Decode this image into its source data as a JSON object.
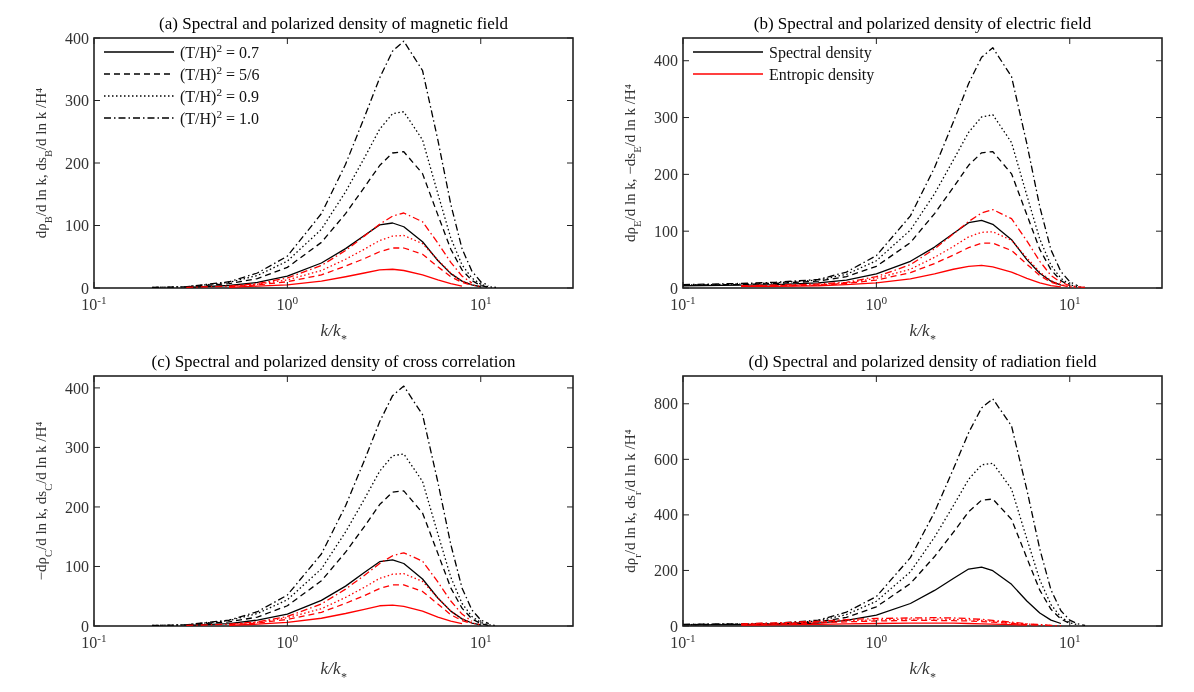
{
  "chart_data": [
    {
      "type": "line",
      "title": "(a) Spectral and polarized density of magnetic field",
      "xlabel": "k/k$_{*}$",
      "ylabel": "dρ$_{B}$/d ln k,  ds$_{B}$/d ln k /H⁴",
      "log": "x",
      "legend": "top left",
      "xlim": [
        0.1,
        30
      ],
      "xticks": [
        {
          "value": 0.1,
          "label": "10$^{-1}$"
        },
        {
          "value": 1,
          "label": "10$^{0}$"
        },
        {
          "value": 10,
          "label": "10$^{1}$"
        }
      ],
      "ylim": [
        0,
        400
      ],
      "yticks": [
        0,
        100,
        200,
        300,
        400
      ],
      "x": [
        0.2,
        0.3,
        0.5,
        0.7,
        1,
        1.5,
        2,
        2.5,
        3,
        3.5,
        4,
        5,
        6,
        7,
        8,
        9,
        10,
        11,
        12
      ],
      "series": [
        {
          "name": "(T/H)$^{2}$ = 0.7",
          "color": "#000000",
          "line_style": "solid",
          "values": [
            null,
            1,
            4,
            9,
            19,
            40,
            63,
            84,
            101,
            104,
            98,
            74,
            44,
            23,
            11,
            5,
            2,
            null,
            null
          ]
        },
        {
          "name": "(T/H)$^{2}$ = 5/6",
          "color": "#000000",
          "line_style": "dashed",
          "values": [
            null,
            2,
            7,
            15,
            33,
            73,
            119,
            161,
            196,
            216,
            218,
            183,
            117,
            62,
            29,
            12,
            4,
            1,
            null
          ]
        },
        {
          "name": "(T/H)$^{2}$ = 0.9",
          "color": "#000000",
          "line_style": "dotted",
          "values": [
            1,
            2,
            9,
            20,
            43,
            94,
            154,
            208,
            254,
            279,
            282,
            237,
            151,
            80,
            37,
            16,
            6,
            2,
            1
          ]
        },
        {
          "name": "(T/H)$^{2}$ = 1.0",
          "color": "#000000",
          "line_style": "dashdot",
          "values": [
            1,
            2,
            10,
            24,
            51,
            119,
            198,
            273,
            336,
            379,
            395,
            348,
            237,
            134,
            63,
            27,
            10,
            4,
            null
          ]
        },
        {
          "color": "#ff0000",
          "line_style": "solid",
          "values": [
            null,
            null,
            1,
            3,
            5,
            11,
            18,
            24,
            29,
            30,
            28,
            21,
            13,
            7,
            3,
            null,
            null,
            null,
            null
          ]
        },
        {
          "color": "#ff0000",
          "line_style": "dashed",
          "values": [
            null,
            null,
            2,
            5,
            10,
            21,
            35,
            47,
            58,
            64,
            64,
            54,
            34,
            18,
            9,
            4,
            null,
            null,
            null
          ]
        },
        {
          "color": "#ff0000",
          "line_style": "dotted",
          "values": [
            null,
            null,
            3,
            6,
            13,
            28,
            46,
            62,
            76,
            83,
            84,
            71,
            45,
            24,
            11,
            5,
            2,
            null,
            null
          ]
        },
        {
          "color": "#ff0000",
          "line_style": "dashdot",
          "values": [
            null,
            1,
            3,
            7,
            16,
            36,
            60,
            83,
            102,
            115,
            120,
            106,
            72,
            41,
            19,
            8,
            null,
            null,
            null
          ]
        }
      ]
    },
    {
      "type": "line",
      "title": "(b) Spectral and polarized density of electric field",
      "xlabel": "k/k$_{*}$",
      "ylabel": "dρ$_{E}$/d ln k,  −ds$_{E}$/d ln k /H⁴",
      "log": "x",
      "legend": "top left",
      "xlim": [
        0.1,
        30
      ],
      "xticks": [
        {
          "value": 0.1,
          "label": "10$^{-1}$"
        },
        {
          "value": 1,
          "label": "10$^{0}$"
        },
        {
          "value": 10,
          "label": "10$^{1}$"
        }
      ],
      "ylim": [
        0,
        440
      ],
      "yticks": [
        0,
        100,
        200,
        300,
        400
      ],
      "x": [
        0.1,
        0.2,
        0.3,
        0.5,
        0.7,
        1,
        1.5,
        2,
        2.5,
        3,
        3.5,
        4,
        5,
        6,
        7,
        8,
        9,
        10,
        11,
        12
      ],
      "series": [
        {
          "name": "Spectral density",
          "color": "#000000",
          "line_style": "solid",
          "values": [
            4,
            5,
            6,
            9,
            14,
            25,
            47,
            72,
            96,
            115,
            119,
            112,
            85,
            50,
            26,
            12,
            5,
            null,
            null,
            null
          ]
        },
        {
          "color": "#000000",
          "line_style": "dashed",
          "values": [
            5,
            6,
            8,
            12,
            20,
            38,
            80,
            131,
            177,
            216,
            238,
            240,
            201,
            129,
            68,
            32,
            13,
            4,
            null,
            null
          ]
        },
        {
          "color": "#000000",
          "line_style": "dotted",
          "values": [
            5,
            7,
            9,
            14,
            24,
            48,
            102,
            166,
            225,
            274,
            301,
            305,
            256,
            163,
            86,
            40,
            17,
            6,
            2,
            1
          ]
        },
        {
          "color": "#000000",
          "line_style": "dashdot",
          "values": [
            6,
            8,
            10,
            15,
            28,
            57,
            127,
            212,
            292,
            360,
            406,
            423,
            372,
            254,
            143,
            67,
            29,
            11,
            4,
            null
          ]
        },
        {
          "name": "Entropic density",
          "color": "#ff0000",
          "line_style": "solid",
          "values": [
            null,
            3,
            3,
            4,
            6,
            9,
            16,
            25,
            33,
            38,
            40,
            37,
            28,
            17,
            9,
            4,
            2,
            null,
            null,
            null
          ]
        },
        {
          "color": "#ff0000",
          "line_style": "dashed",
          "values": [
            null,
            3,
            4,
            5,
            8,
            14,
            27,
            43,
            58,
            71,
            79,
            79,
            66,
            42,
            22,
            10,
            5,
            2,
            null,
            null
          ]
        },
        {
          "color": "#ff0000",
          "line_style": "dotted",
          "values": [
            null,
            3,
            4,
            6,
            9,
            17,
            33,
            54,
            73,
            90,
            98,
            99,
            84,
            53,
            28,
            13,
            6,
            2,
            1,
            null
          ]
        },
        {
          "color": "#ff0000",
          "line_style": "dashdot",
          "values": [
            null,
            4,
            5,
            7,
            10,
            20,
            41,
            69,
            95,
            117,
            132,
            138,
            122,
            83,
            47,
            22,
            10,
            4,
            2,
            1
          ]
        }
      ]
    },
    {
      "type": "line",
      "title": "(c) Spectral and polarized density of cross correlation",
      "xlabel": "k/k$_{*}$",
      "ylabel": "−dρ$_{C}$/d ln k,  ds$_{C}$/d ln k /H⁴",
      "log": "x",
      "xlim": [
        0.1,
        30
      ],
      "xticks": [
        {
          "value": 0.1,
          "label": "10$^{-1}$"
        },
        {
          "value": 1,
          "label": "10$^{0}$"
        },
        {
          "value": 10,
          "label": "10$^{1}$"
        }
      ],
      "ylim": [
        0,
        420
      ],
      "yticks": [
        0,
        100,
        200,
        300,
        400
      ],
      "x": [
        0.2,
        0.3,
        0.5,
        0.7,
        1,
        1.5,
        2,
        2.5,
        3,
        3.5,
        4,
        5,
        6,
        7,
        8,
        9,
        10,
        11,
        12
      ],
      "series": [
        {
          "color": "#000000",
          "line_style": "solid",
          "values": [
            null,
            1,
            4,
            10,
            20,
            43,
            67,
            90,
            108,
            111,
            105,
            79,
            47,
            25,
            12,
            5,
            2,
            null,
            null
          ]
        },
        {
          "color": "#000000",
          "line_style": "dashed",
          "values": [
            null,
            2,
            7,
            15,
            34,
            76,
            124,
            167,
            204,
            225,
            227,
            190,
            122,
            64,
            30,
            12,
            4,
            1,
            null
          ]
        },
        {
          "color": "#000000",
          "line_style": "dotted",
          "values": [
            1,
            2,
            9,
            21,
            44,
            96,
            158,
            213,
            260,
            286,
            289,
            243,
            155,
            82,
            38,
            16,
            6,
            2,
            1
          ]
        },
        {
          "color": "#000000",
          "line_style": "dashdot",
          "values": [
            1,
            2,
            10,
            24,
            52,
            121,
            202,
            278,
            343,
            387,
            403,
            355,
            242,
            137,
            64,
            27,
            10,
            4,
            null
          ]
        },
        {
          "color": "#ff0000",
          "line_style": "solid",
          "values": [
            null,
            null,
            1,
            3,
            6,
            13,
            21,
            28,
            34,
            35,
            33,
            25,
            15,
            8,
            4,
            null,
            null,
            null,
            null
          ]
        },
        {
          "color": "#ff0000",
          "line_style": "dashed",
          "values": [
            null,
            null,
            2,
            5,
            11,
            23,
            38,
            51,
            63,
            69,
            69,
            58,
            37,
            19,
            9,
            4,
            null,
            null,
            null
          ]
        },
        {
          "color": "#ff0000",
          "line_style": "dotted",
          "values": [
            null,
            null,
            3,
            6,
            14,
            29,
            48,
            65,
            80,
            87,
            88,
            75,
            47,
            25,
            12,
            5,
            2,
            null,
            null
          ]
        },
        {
          "color": "#ff0000",
          "line_style": "dashdot",
          "values": [
            null,
            1,
            3,
            7,
            16,
            37,
            62,
            85,
            105,
            118,
            123,
            109,
            74,
            42,
            20,
            8,
            null,
            null,
            null
          ]
        }
      ]
    },
    {
      "type": "line",
      "title": "(d) Spectral and polarized density of radiation field",
      "xlabel": "k/k$_{*}$",
      "ylabel": "dρ$_{r}$/d ln k,  ds$_{r}$/d ln k /H⁴",
      "log": "x",
      "xlim": [
        0.1,
        30
      ],
      "xticks": [
        {
          "value": 0.1,
          "label": "10$^{-1}$"
        },
        {
          "value": 1,
          "label": "10$^{0}$"
        },
        {
          "value": 10,
          "label": "10$^{1}$"
        }
      ],
      "ylim": [
        0,
        900
      ],
      "yticks": [
        0,
        200,
        400,
        600,
        800
      ],
      "x": [
        0.1,
        0.2,
        0.3,
        0.5,
        0.7,
        1,
        1.5,
        2,
        2.5,
        3,
        3.5,
        4,
        5,
        6,
        7,
        8,
        9,
        10,
        11,
        12
      ],
      "series": [
        {
          "color": "#000000",
          "line_style": "solid",
          "values": [
            4,
            5,
            6,
            10,
            20,
            39,
            81,
            128,
            171,
            205,
            212,
            199,
            150,
            90,
            47,
            21,
            9,
            null,
            null,
            null
          ]
        },
        {
          "color": "#000000",
          "line_style": "dashed",
          "values": [
            5,
            6,
            7,
            15,
            31,
            69,
            153,
            250,
            337,
            411,
            453,
            457,
            384,
            245,
            129,
            60,
            25,
            9,
            null,
            null
          ]
        },
        {
          "color": "#000000",
          "line_style": "dotted",
          "values": [
            5,
            7,
            8,
            18,
            41,
            89,
            195,
            320,
            433,
            528,
            580,
            586,
            493,
            314,
            166,
            77,
            32,
            12,
            4,
            null
          ]
        },
        {
          "color": "#000000",
          "line_style": "dashdot",
          "values": [
            6,
            8,
            10,
            21,
            50,
            106,
            246,
            410,
            565,
            696,
            785,
            818,
            720,
            491,
            277,
            130,
            55,
            21,
            8,
            2
          ]
        },
        {
          "color": "#ff0000",
          "line_style": "solid",
          "values": [
            null,
            3,
            4,
            6,
            8,
            9,
            10,
            10,
            10,
            9,
            8,
            7,
            5,
            3,
            null,
            null,
            null,
            null,
            null,
            null
          ]
        },
        {
          "color": "#ff0000",
          "line_style": "dashed",
          "values": [
            null,
            5,
            7,
            11,
            15,
            18,
            20,
            20,
            19,
            18,
            16,
            14,
            9,
            5,
            3,
            null,
            null,
            null,
            null,
            null
          ]
        },
        {
          "color": "#ff0000",
          "line_style": "dotted",
          "values": [
            null,
            6,
            9,
            14,
            19,
            22,
            25,
            25,
            24,
            22,
            20,
            17,
            11,
            7,
            4,
            2,
            null,
            null,
            null,
            null
          ]
        },
        {
          "color": "#ff0000",
          "line_style": "dashdot",
          "values": [
            null,
            8,
            11,
            17,
            23,
            27,
            29,
            30,
            29,
            27,
            24,
            20,
            14,
            8,
            5,
            2,
            1,
            null,
            null,
            null
          ]
        }
      ]
    }
  ]
}
